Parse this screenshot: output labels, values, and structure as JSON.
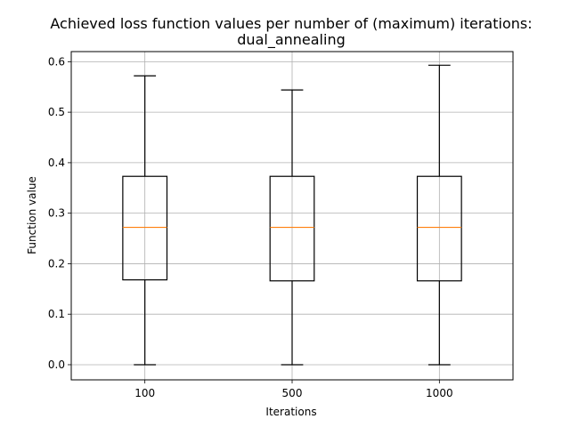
{
  "chart_data": {
    "type": "box",
    "title": "Achieved loss function values per number of (maximum) iterations:",
    "subtitle": "dual_annealing",
    "xlabel": "Iterations",
    "ylabel": "Function value",
    "ylim": [
      -0.03,
      0.62
    ],
    "yticks": [
      "0.0",
      "0.1",
      "0.2",
      "0.3",
      "0.4",
      "0.5",
      "0.6"
    ],
    "ytick_values": [
      0.0,
      0.1,
      0.2,
      0.3,
      0.4,
      0.5,
      0.6
    ],
    "grid": true,
    "categories": [
      "100",
      "500",
      "1000"
    ],
    "boxes": [
      {
        "category": "100",
        "whisker_low": 0.0,
        "q1": 0.168,
        "median": 0.272,
        "q3": 0.373,
        "whisker_high": 0.572
      },
      {
        "category": "500",
        "whisker_low": 0.0,
        "q1": 0.166,
        "median": 0.272,
        "q3": 0.373,
        "whisker_high": 0.544
      },
      {
        "category": "1000",
        "whisker_low": 0.0,
        "q1": 0.166,
        "median": 0.272,
        "q3": 0.373,
        "whisker_high": 0.593
      }
    ],
    "colors": {
      "box": "#000000",
      "median": "#ff7f0e",
      "grid": "#b0b0b0"
    }
  }
}
